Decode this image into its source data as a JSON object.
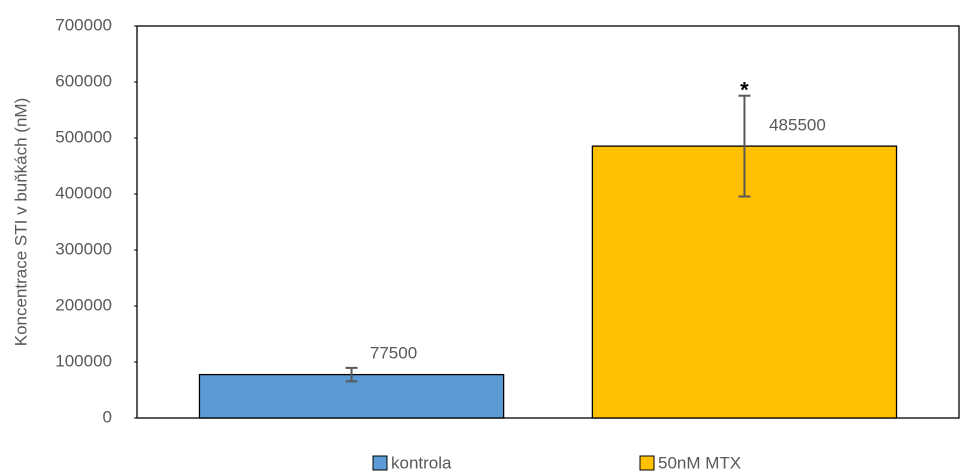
{
  "chart_data": {
    "type": "bar",
    "y_label": "Koncentrace STI v buňkách (nM)",
    "categories": [
      null
    ],
    "series": [
      {
        "name": "kontrola",
        "color": "#5b9bd5",
        "values": [
          77500
        ],
        "errors": [
          12000
        ]
      },
      {
        "name": "50nM MTX",
        "color": "#ffc000",
        "values": [
          485500
        ],
        "errors": [
          90000
        ]
      }
    ],
    "annotations": [
      {
        "text": "*",
        "series": 1
      }
    ],
    "ylim": [
      0,
      700000
    ],
    "yticks": [
      0,
      100000,
      200000,
      300000,
      400000,
      500000,
      600000,
      700000
    ],
    "grid": false,
    "legend": "bottom"
  }
}
